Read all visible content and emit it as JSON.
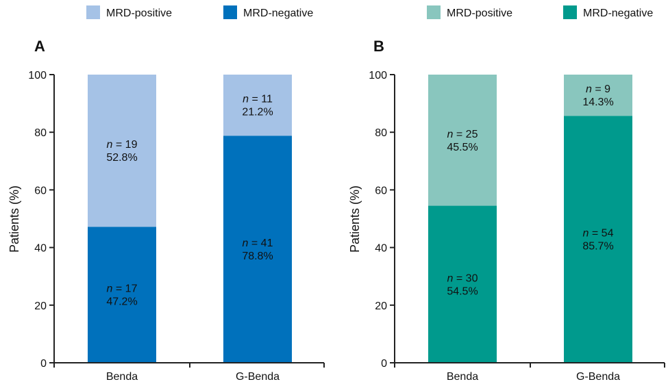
{
  "chart_data": [
    {
      "panel_label": "A",
      "type": "bar",
      "stacked": true,
      "ylabel": "Patients (%)",
      "ylim": [
        0,
        100
      ],
      "yticks": [
        "0",
        "20",
        "40",
        "60",
        "80",
        "100"
      ],
      "categories": [
        "Benda",
        "G-Benda"
      ],
      "legend": [
        "MRD-positive",
        "MRD-negative"
      ],
      "legend_position": "top",
      "colors": {
        "MRD-positive": "#a5c2e6",
        "MRD-negative": "#0071bc"
      },
      "series": [
        {
          "name": "MRD-negative",
          "values": [
            47.2,
            78.8
          ],
          "labels": [
            {
              "n_prefix": "n",
              "n_value": "= 17",
              "percent": "47.2%"
            },
            {
              "n_prefix": "n",
              "n_value": "= 41",
              "percent": "78.8%"
            }
          ]
        },
        {
          "name": "MRD-positive",
          "values": [
            52.8,
            21.2
          ],
          "labels": [
            {
              "n_prefix": "n",
              "n_value": "= 19",
              "percent": "52.8%"
            },
            {
              "n_prefix": "n",
              "n_value": "= 11",
              "percent": "21.2%"
            }
          ]
        }
      ]
    },
    {
      "panel_label": "B",
      "type": "bar",
      "stacked": true,
      "ylabel": "Patients (%)",
      "ylim": [
        0,
        100
      ],
      "yticks": [
        "0",
        "20",
        "40",
        "60",
        "80",
        "100"
      ],
      "categories": [
        "Benda",
        "G-Benda"
      ],
      "legend": [
        "MRD-positive",
        "MRD-negative"
      ],
      "legend_position": "top",
      "colors": {
        "MRD-positive": "#89c6be",
        "MRD-negative": "#009a8d"
      },
      "series": [
        {
          "name": "MRD-negative",
          "values": [
            54.5,
            85.7
          ],
          "labels": [
            {
              "n_prefix": "n",
              "n_value": "= 30",
              "percent": "54.5%"
            },
            {
              "n_prefix": "n",
              "n_value": "= 54",
              "percent": "85.7%"
            }
          ]
        },
        {
          "name": "MRD-positive",
          "values": [
            45.5,
            14.3
          ],
          "labels": [
            {
              "n_prefix": "n",
              "n_value": "= 25",
              "percent": "45.5%"
            },
            {
              "n_prefix": "n",
              "n_value": "= 9",
              "percent": "14.3%"
            }
          ]
        }
      ]
    }
  ]
}
